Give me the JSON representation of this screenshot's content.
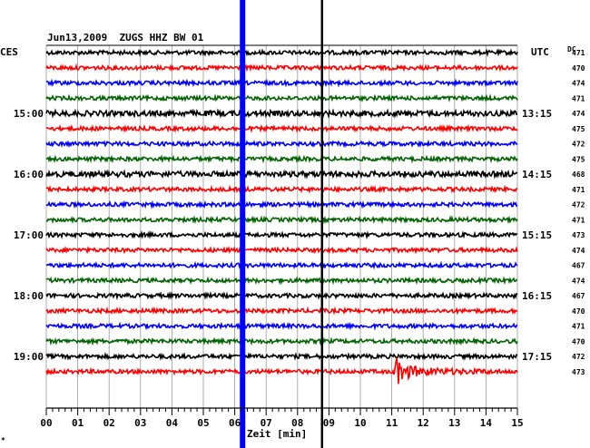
{
  "chart_data": {
    "type": "line",
    "title": "Jun13,2009  ZUGS HHZ BW 01",
    "left_timezone": "CES",
    "right_timezone": "UTC",
    "dc_label": "DC",
    "xlabel": "Zeit [min]",
    "x_ticks": [
      "00",
      "01",
      "02",
      "03",
      "04",
      "05",
      "06",
      "07",
      "08",
      "09",
      "10",
      "11",
      "12",
      "13",
      "14",
      "15"
    ],
    "xlim": [
      0,
      15
    ],
    "left_hour_labels": [
      {
        "trace": 4,
        "label": "15:00"
      },
      {
        "trace": 8,
        "label": "16:00"
      },
      {
        "trace": 12,
        "label": "17:00"
      },
      {
        "trace": 16,
        "label": "18:00"
      },
      {
        "trace": 20,
        "label": "19:00"
      }
    ],
    "right_hour_labels": [
      {
        "trace": 4,
        "label": "13:15"
      },
      {
        "trace": 8,
        "label": "14:15"
      },
      {
        "trace": 12,
        "label": "15:15"
      },
      {
        "trace": 16,
        "label": "16:15"
      },
      {
        "trace": 20,
        "label": "17:15"
      }
    ],
    "dc_values": [
      "471",
      "470",
      "474",
      "471",
      "474",
      "475",
      "472",
      "475",
      "468",
      "471",
      "472",
      "471",
      "473",
      "474",
      "467",
      "474",
      "467",
      "470",
      "471",
      "470",
      "472",
      "473"
    ],
    "trace_colors": [
      "#000000",
      "#ff0000",
      "#0000ff",
      "#006400"
    ],
    "vertical_markers": [
      {
        "minute": 6.25,
        "color": "#0000ff"
      },
      {
        "minute": 8.78,
        "color": "#000000"
      }
    ],
    "event": {
      "trace": 21,
      "start_minute": 11.05,
      "end_minute": 14.2
    },
    "grid": true,
    "footer_mark": "*"
  }
}
